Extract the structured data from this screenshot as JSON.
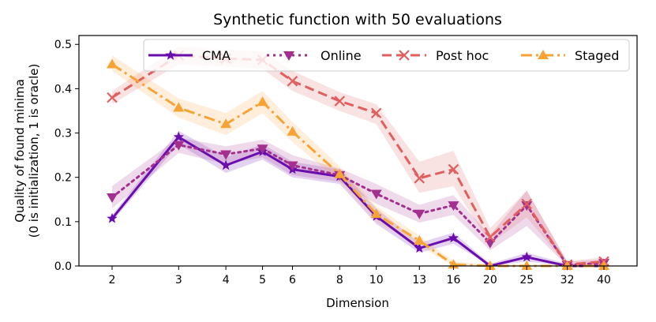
{
  "chart_data": {
    "type": "line",
    "title": "Synthetic function with 50 evaluations",
    "xlabel": "Dimension",
    "ylabel_lines": [
      "Quality of found minima",
      "(0 is initialization, 1 is oracle)"
    ],
    "x_scale": "log",
    "x": [
      2,
      3,
      4,
      5,
      6,
      8,
      10,
      13,
      16,
      20,
      25,
      32,
      40
    ],
    "x_tick_labels": [
      "2",
      "3",
      "4",
      "5",
      "6",
      "8",
      "10",
      "13",
      "16",
      "20",
      "25",
      "32",
      "40"
    ],
    "ylim": [
      0,
      0.52
    ],
    "y_ticks": [
      0.0,
      0.1,
      0.2,
      0.3,
      0.4,
      0.5
    ],
    "y_tick_labels": [
      "0.0",
      "0.1",
      "0.2",
      "0.3",
      "0.4",
      "0.5"
    ],
    "grid": false,
    "legend_position": "top",
    "series": [
      {
        "name": "CMA",
        "color": "#6a0dad",
        "marker": "star",
        "linestyle": "solid",
        "values": [
          0.107,
          0.291,
          0.227,
          0.258,
          0.218,
          0.202,
          0.112,
          0.04,
          0.063,
          0.0,
          0.02,
          0.0,
          0.0
        ],
        "lower": [
          0.1,
          0.275,
          0.21,
          0.24,
          0.2,
          0.185,
          0.095,
          0.03,
          0.05,
          0.0,
          0.01,
          0.0,
          0.0
        ],
        "upper": [
          0.115,
          0.305,
          0.245,
          0.275,
          0.235,
          0.218,
          0.13,
          0.052,
          0.075,
          0.005,
          0.03,
          0.005,
          0.005
        ]
      },
      {
        "name": "Online",
        "color": "#a3308e",
        "marker": "triangle-down",
        "linestyle": "dotted",
        "values": [
          0.155,
          0.273,
          0.252,
          0.265,
          0.227,
          0.205,
          0.163,
          0.118,
          0.137,
          0.052,
          0.137,
          0.002,
          0.007
        ],
        "lower": [
          0.13,
          0.255,
          0.23,
          0.245,
          0.205,
          0.19,
          0.14,
          0.098,
          0.115,
          0.035,
          0.09,
          0.0,
          0.0
        ],
        "upper": [
          0.18,
          0.29,
          0.27,
          0.285,
          0.25,
          0.22,
          0.185,
          0.138,
          0.16,
          0.07,
          0.17,
          0.01,
          0.015
        ]
      },
      {
        "name": "Post hoc",
        "color": "#e05f5f",
        "marker": "x",
        "linestyle": "dashed",
        "values": [
          0.38,
          0.475,
          0.468,
          0.465,
          0.417,
          0.372,
          0.345,
          0.198,
          0.218,
          0.065,
          0.14,
          0.003,
          0.01
        ],
        "lower": [
          0.365,
          0.455,
          0.45,
          0.445,
          0.395,
          0.35,
          0.32,
          0.165,
          0.18,
          0.05,
          0.11,
          0.0,
          0.0
        ],
        "upper": [
          0.395,
          0.495,
          0.488,
          0.485,
          0.44,
          0.392,
          0.365,
          0.235,
          0.26,
          0.085,
          0.17,
          0.01,
          0.02
        ]
      },
      {
        "name": "Staged",
        "color": "#f7a335",
        "marker": "triangle-up",
        "linestyle": "dashdot",
        "values": [
          0.455,
          0.357,
          0.32,
          0.37,
          0.303,
          0.207,
          0.117,
          0.057,
          0.003,
          0.0,
          0.0,
          0.0,
          0.0
        ],
        "lower": [
          0.44,
          0.335,
          0.295,
          0.345,
          0.28,
          0.19,
          0.1,
          0.045,
          0.0,
          0.0,
          0.0,
          0.0,
          0.0
        ],
        "upper": [
          0.475,
          0.378,
          0.345,
          0.395,
          0.325,
          0.225,
          0.135,
          0.068,
          0.01,
          0.003,
          0.003,
          0.003,
          0.003
        ]
      }
    ]
  }
}
